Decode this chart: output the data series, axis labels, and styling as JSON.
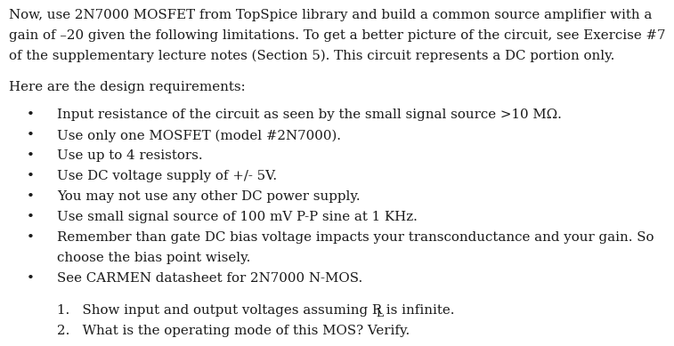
{
  "bg_color": "#ffffff",
  "text_color": "#1a1a1a",
  "font_family": "DejaVu Serif",
  "para_lines": [
    "Now, use 2N7000 MOSFET from TopSpice library and build a common source amplifier with a",
    "gain of –20 given the following limitations. To get a better picture of the circuit, see Exercise #7",
    "of the supplementary lecture notes (Section 5). This circuit represents a DC portion only."
  ],
  "subheading": "Here are the design requirements:",
  "bullets": [
    [
      "Input resistance of the circuit as seen by the small signal source >10 MΩ."
    ],
    [
      "Use only one MOSFET (model #2N7000)."
    ],
    [
      "Use up to 4 resistors."
    ],
    [
      "Use DC voltage supply of +/- 5V."
    ],
    [
      "You may not use any other DC power supply."
    ],
    [
      "Use small signal source of 100 mV P-P sine at 1 KHz."
    ],
    [
      "Remember than gate DC bias voltage impacts your transconductance and your gain. So",
      "choose the bias point wisely."
    ],
    [
      "See CARMEN datasheet for 2N7000 N-MOS."
    ]
  ],
  "numbered": [
    "Show input and output voltages assuming Rᴸ is infinite.",
    "What is the operating mode of this MOS? Verify."
  ],
  "fs": 10.8,
  "lh": 16.5
}
